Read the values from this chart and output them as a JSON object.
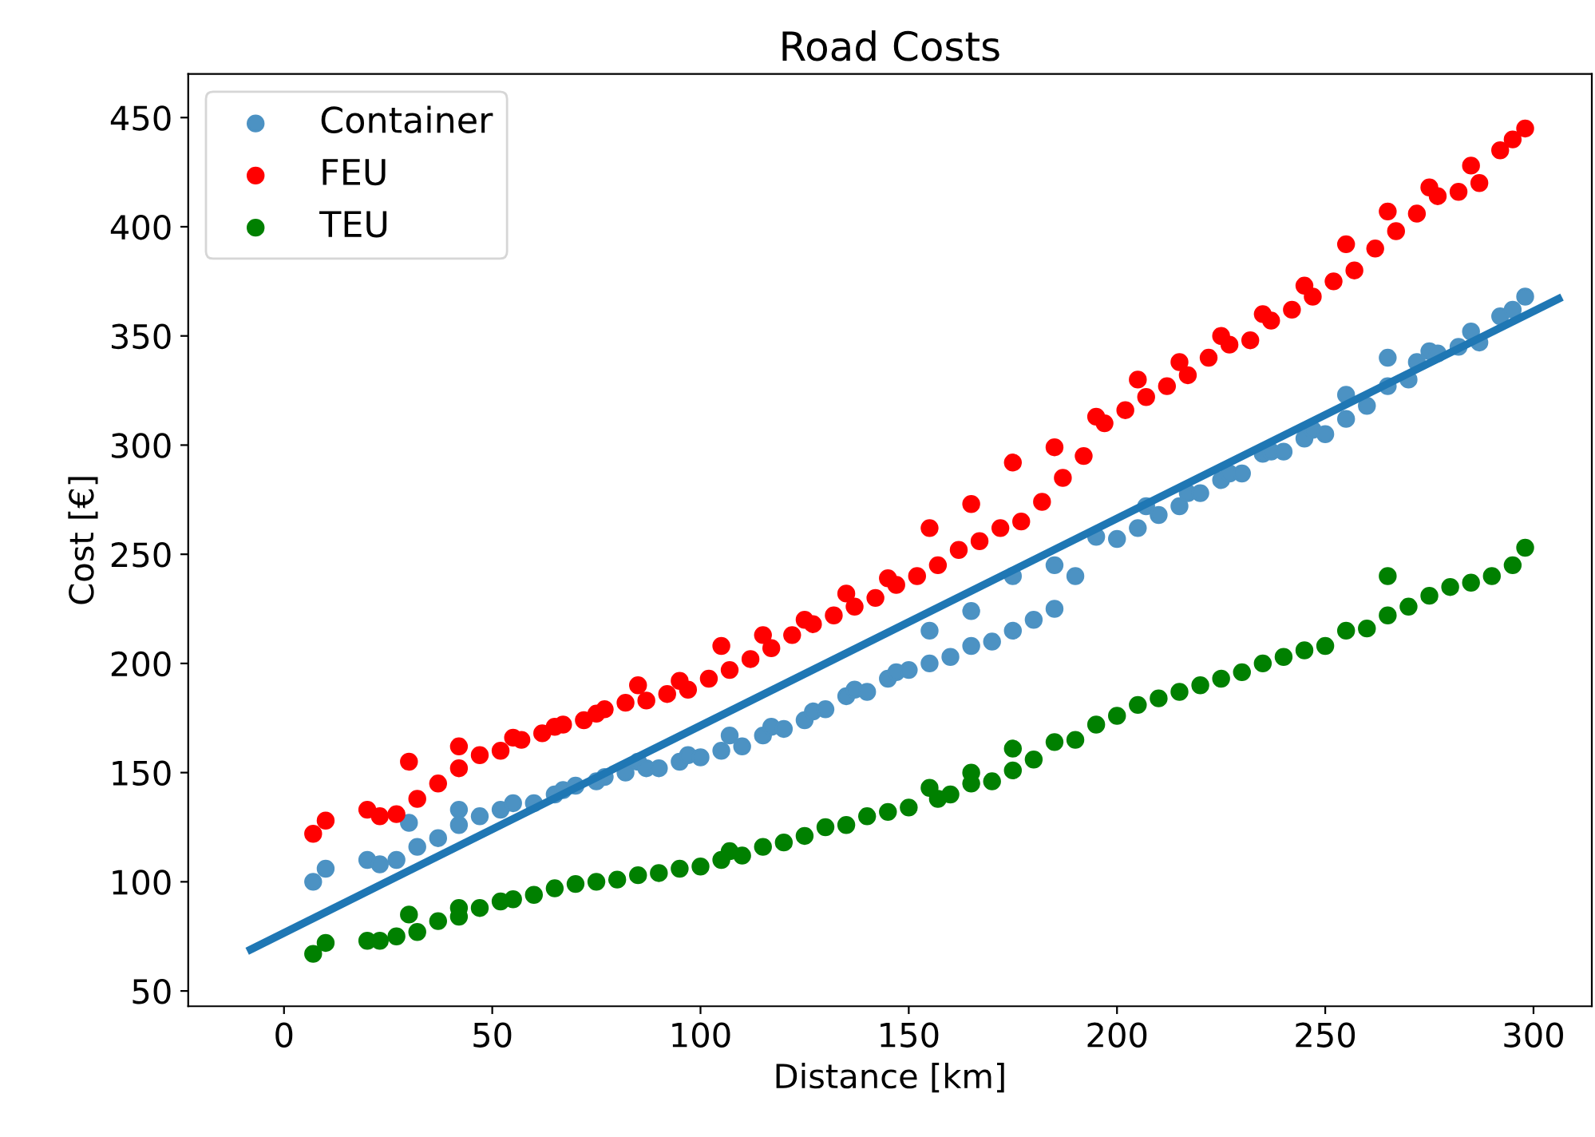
{
  "chart_data": {
    "type": "scatter",
    "title": "Road Costs",
    "xlabel": "Distance [km]",
    "ylabel": "Cost [€]",
    "xlim": [
      -23,
      314
    ],
    "ylim": [
      43,
      470
    ],
    "xticks": [
      0,
      50,
      100,
      150,
      200,
      250,
      300
    ],
    "yticks": [
      50,
      100,
      150,
      200,
      250,
      300,
      350,
      400,
      450
    ],
    "grid": false,
    "legend": "top left",
    "marker": "circle",
    "series": [
      {
        "name": "Container",
        "color": "#4c92c3",
        "x": [
          7,
          10,
          20,
          23,
          27,
          30,
          32,
          37,
          42,
          42,
          47,
          52,
          55,
          60,
          65,
          67,
          70,
          75,
          77,
          82,
          85,
          87,
          90,
          95,
          97,
          100,
          105,
          107,
          110,
          115,
          117,
          120,
          125,
          127,
          130,
          135,
          137,
          140,
          145,
          147,
          150,
          155,
          155,
          160,
          165,
          165,
          170,
          175,
          175,
          180,
          185,
          185,
          190,
          195,
          200,
          205,
          207,
          210,
          215,
          217,
          220,
          225,
          227,
          230,
          235,
          237,
          240,
          245,
          247,
          250,
          255,
          255,
          260,
          265,
          265,
          270,
          272,
          275,
          277,
          282,
          285,
          287,
          292,
          295,
          298
        ],
        "values": [
          100,
          106,
          110,
          108,
          110,
          127,
          116,
          120,
          133,
          126,
          130,
          133,
          136,
          136,
          140,
          142,
          144,
          146,
          148,
          150,
          155,
          152,
          152,
          155,
          158,
          157,
          160,
          167,
          162,
          167,
          171,
          170,
          174,
          178,
          179,
          185,
          188,
          187,
          193,
          196,
          197,
          200,
          215,
          203,
          208,
          224,
          210,
          215,
          240,
          220,
          225,
          245,
          240,
          258,
          257,
          262,
          272,
          268,
          272,
          278,
          278,
          284,
          287,
          287,
          296,
          297,
          297,
          303,
          307,
          305,
          312,
          323,
          318,
          327,
          340,
          330,
          338,
          343,
          342,
          345,
          352,
          347,
          359,
          362,
          368
        ]
      },
      {
        "name": "FEU",
        "color": "#ff0000",
        "x": [
          7,
          10,
          20,
          23,
          27,
          30,
          32,
          37,
          42,
          42,
          47,
          52,
          55,
          57,
          62,
          65,
          67,
          72,
          75,
          77,
          82,
          85,
          87,
          92,
          95,
          97,
          102,
          105,
          107,
          112,
          115,
          117,
          122,
          125,
          127,
          132,
          135,
          137,
          142,
          145,
          147,
          152,
          155,
          157,
          162,
          165,
          167,
          172,
          175,
          177,
          182,
          185,
          187,
          192,
          195,
          197,
          202,
          205,
          207,
          212,
          215,
          217,
          222,
          225,
          227,
          232,
          235,
          237,
          242,
          245,
          247,
          252,
          255,
          257,
          262,
          265,
          267,
          272,
          275,
          277,
          282,
          285,
          287,
          292,
          295,
          298
        ],
        "values": [
          122,
          128,
          133,
          130,
          131,
          155,
          138,
          145,
          162,
          152,
          158,
          160,
          166,
          165,
          168,
          171,
          172,
          174,
          177,
          179,
          182,
          190,
          183,
          186,
          192,
          188,
          193,
          208,
          197,
          202,
          213,
          207,
          213,
          220,
          218,
          222,
          232,
          226,
          230,
          239,
          236,
          240,
          262,
          245,
          252,
          273,
          256,
          262,
          292,
          265,
          274,
          299,
          285,
          295,
          313,
          310,
          316,
          330,
          322,
          327,
          338,
          332,
          340,
          350,
          346,
          348,
          360,
          357,
          362,
          373,
          368,
          375,
          392,
          380,
          390,
          407,
          398,
          406,
          418,
          414,
          416,
          428,
          420,
          435,
          440,
          445
        ]
      },
      {
        "name": "TEU",
        "color": "#008000",
        "x": [
          7,
          10,
          20,
          23,
          27,
          30,
          32,
          37,
          42,
          42,
          47,
          52,
          55,
          60,
          65,
          70,
          75,
          80,
          85,
          90,
          95,
          100,
          105,
          107,
          110,
          115,
          120,
          125,
          130,
          135,
          140,
          145,
          150,
          155,
          157,
          160,
          165,
          165,
          170,
          175,
          175,
          180,
          185,
          190,
          195,
          200,
          205,
          210,
          215,
          220,
          225,
          230,
          235,
          240,
          245,
          250,
          255,
          260,
          265,
          265,
          270,
          275,
          280,
          285,
          290,
          295,
          298
        ],
        "values": [
          67,
          72,
          73,
          73,
          75,
          85,
          77,
          82,
          88,
          84,
          88,
          91,
          92,
          94,
          97,
          99,
          100,
          101,
          103,
          104,
          106,
          107,
          110,
          114,
          112,
          116,
          118,
          121,
          125,
          126,
          130,
          132,
          134,
          143,
          138,
          140,
          145,
          150,
          146,
          151,
          161,
          156,
          164,
          165,
          172,
          176,
          181,
          184,
          187,
          190,
          193,
          196,
          200,
          203,
          206,
          208,
          215,
          216,
          222,
          240,
          226,
          231,
          235,
          237,
          240,
          245,
          253
        ]
      },
      {
        "type": "line",
        "color": "#1f77b4",
        "marker": "none",
        "x": [
          -8,
          306
        ],
        "values": [
          69,
          367
        ]
      }
    ]
  }
}
